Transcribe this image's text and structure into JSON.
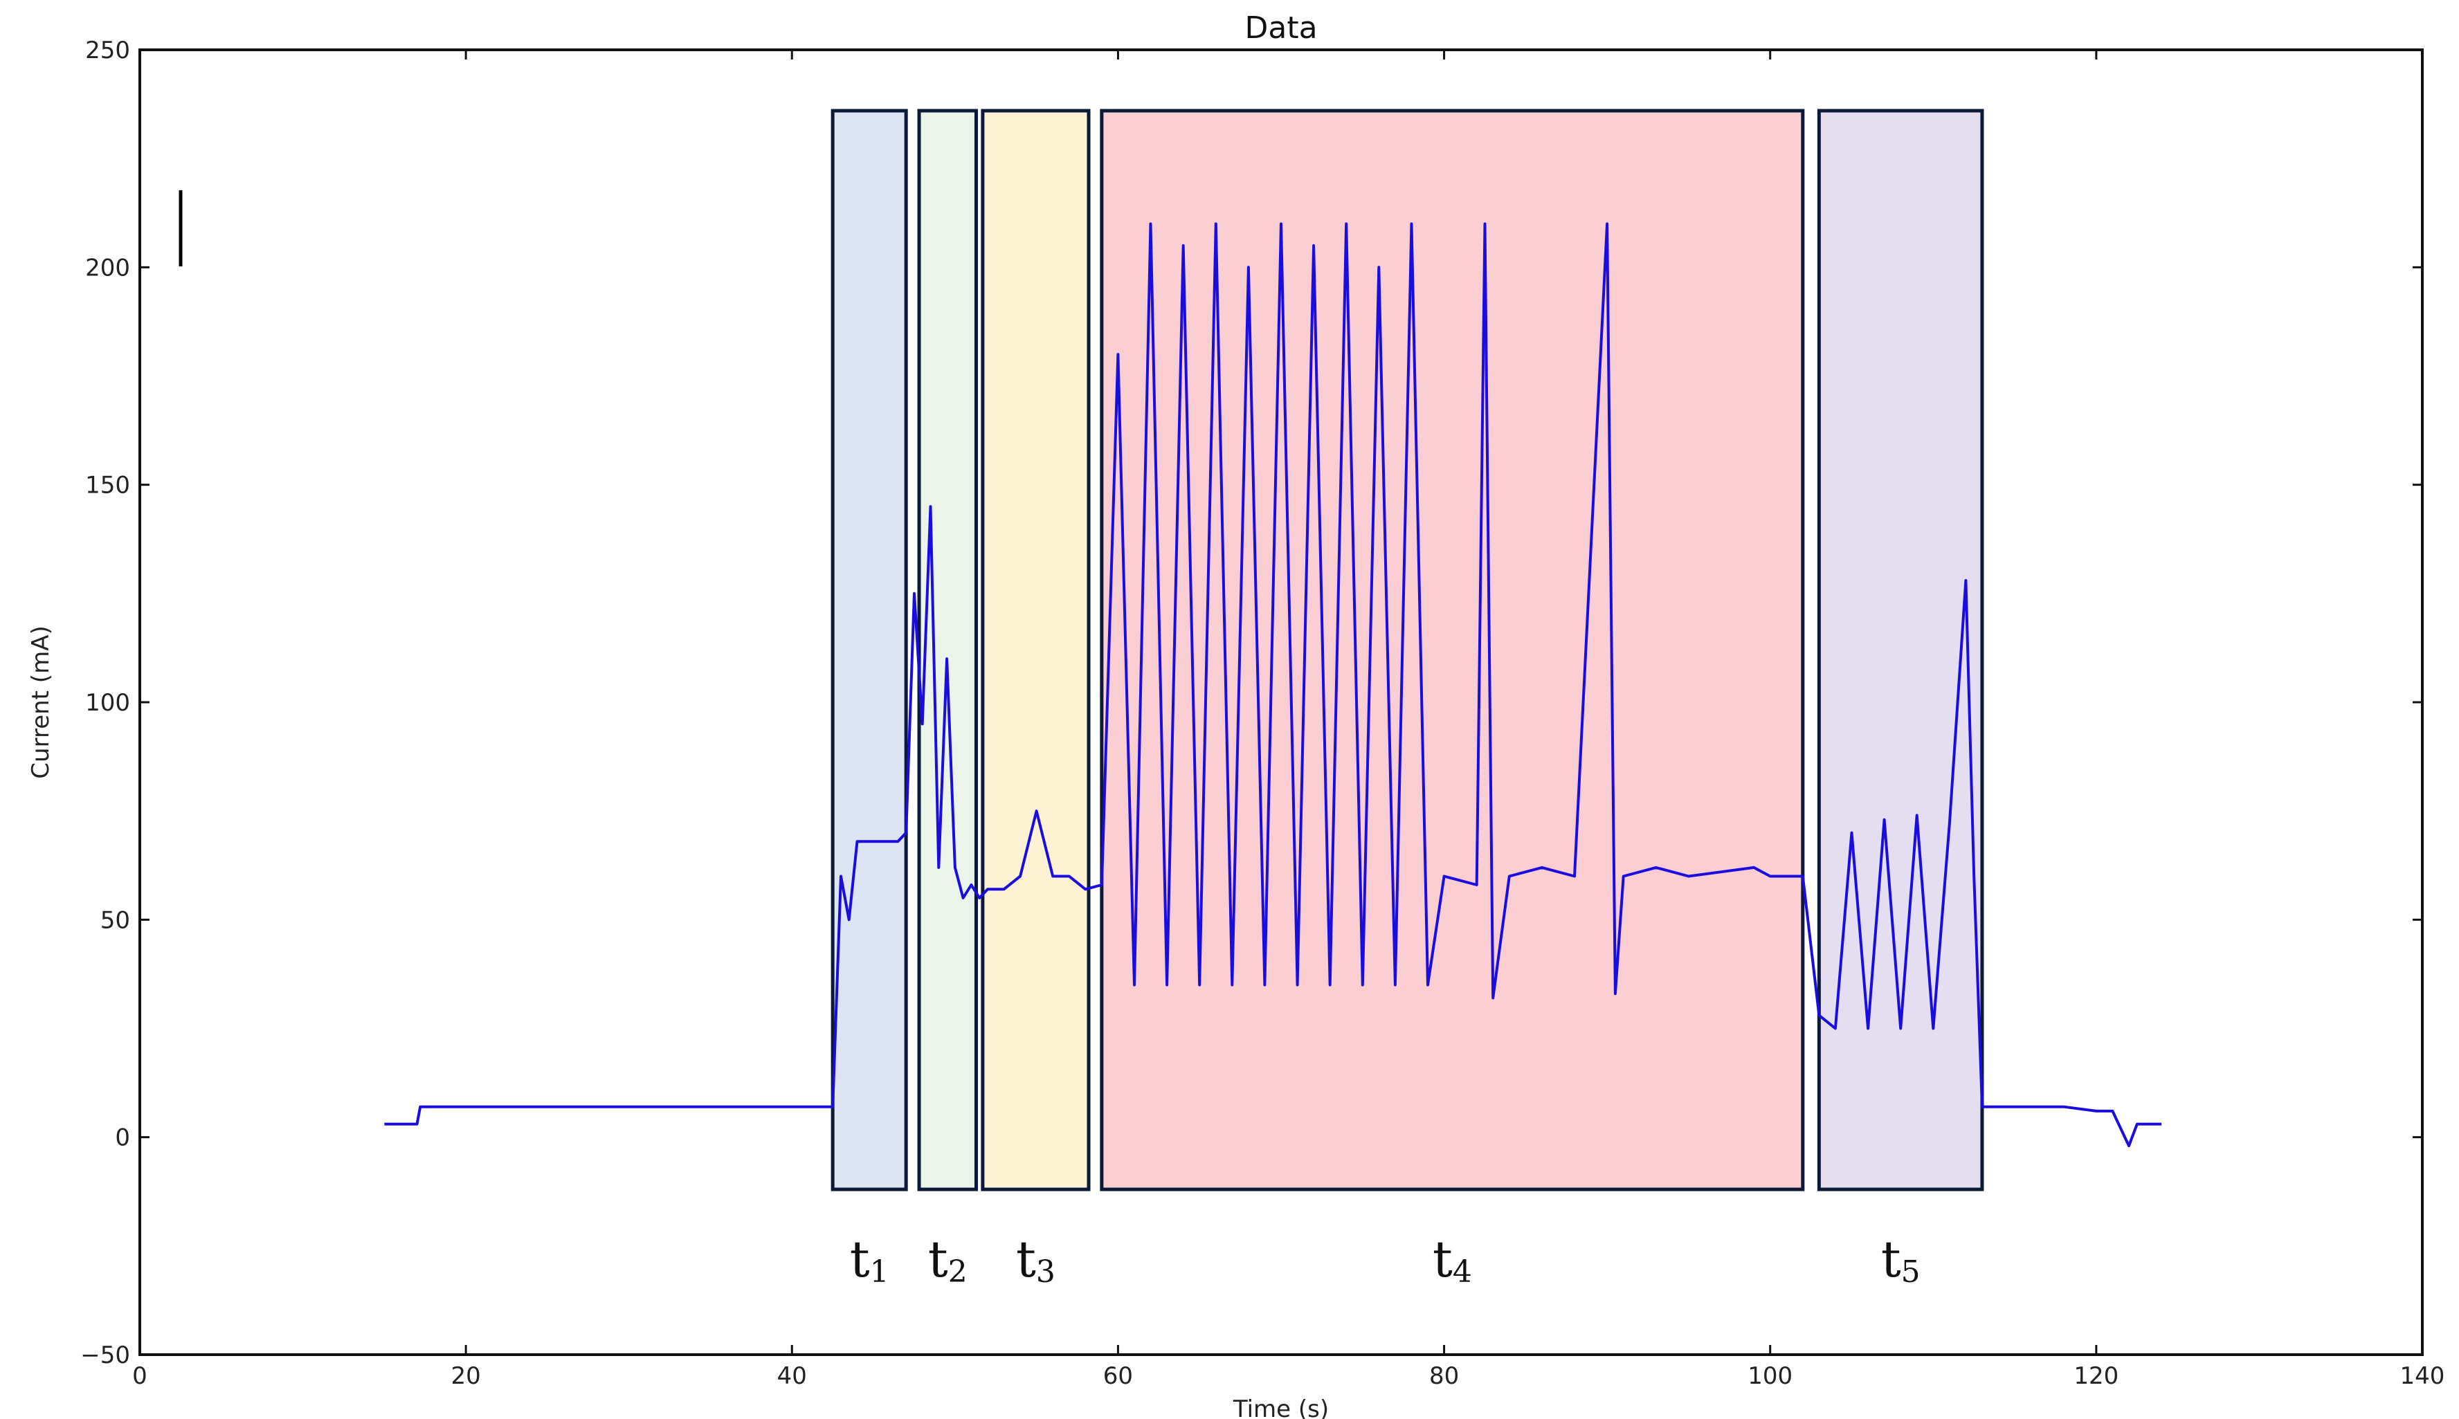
{
  "chart_data": {
    "type": "line",
    "title": "Data",
    "xlabel": "Time (s)",
    "ylabel": "Current (mA)",
    "xlim": [
      0,
      140
    ],
    "ylim": [
      -50,
      250
    ],
    "xticks": [
      0,
      20,
      40,
      60,
      80,
      100,
      120,
      140
    ],
    "yticks": [
      -50,
      0,
      50,
      100,
      150,
      200,
      250
    ],
    "line_color": "#1a0de0",
    "series": [
      {
        "x": [
          15,
          17,
          17.2,
          42.5,
          43,
          43.5,
          44,
          44.5,
          45,
          46,
          46.5,
          47,
          47.5,
          48,
          48.5,
          49,
          49.5,
          50,
          50.5,
          51,
          51.5,
          52,
          53,
          54,
          55,
          56,
          57,
          58,
          59,
          60,
          61,
          62,
          63,
          64,
          65,
          66,
          67,
          68,
          69,
          70,
          71,
          72,
          73,
          74,
          75,
          76,
          77,
          78,
          79,
          80,
          82,
          82.5,
          83,
          84,
          86,
          88,
          90,
          90.5,
          91,
          93,
          95,
          97,
          99,
          100,
          102,
          103,
          104,
          105,
          106,
          107,
          108,
          109,
          110,
          111,
          112,
          112.5,
          113,
          114,
          116,
          118,
          120,
          121,
          122,
          122.5,
          124
        ],
        "y": [
          3,
          3,
          7,
          7,
          60,
          50,
          68,
          68,
          68,
          68,
          68,
          70,
          125,
          95,
          145,
          62,
          110,
          62,
          55,
          58,
          55,
          57,
          57,
          60,
          75,
          60,
          60,
          57,
          58,
          180,
          35,
          210,
          35,
          205,
          35,
          210,
          35,
          200,
          35,
          210,
          35,
          205,
          35,
          210,
          35,
          200,
          35,
          210,
          35,
          60,
          58,
          210,
          32,
          60,
          62,
          60,
          210,
          33,
          60,
          62,
          60,
          61,
          62,
          60,
          60,
          28,
          25,
          70,
          25,
          73,
          25,
          74,
          25,
          72,
          128,
          60,
          7,
          7,
          7,
          7,
          6,
          6,
          -2,
          3,
          3
        ]
      }
    ],
    "phases": [
      {
        "label": "t",
        "sub": "1",
        "x0": 42.5,
        "x1": 47,
        "color": "#c6d4ec"
      },
      {
        "label": "t",
        "sub": "2",
        "x0": 47.8,
        "x1": 51.3,
        "color": "#deecda"
      },
      {
        "label": "t",
        "sub": "3",
        "x0": 51.7,
        "x1": 58.2,
        "color": "#fde9b8"
      },
      {
        "label": "t",
        "sub": "4",
        "x0": 59,
        "x1": 102,
        "color": "#f8adb3"
      },
      {
        "label": "t",
        "sub": "5",
        "x0": 103,
        "x1": 113,
        "color": "#d4c6e6"
      }
    ]
  }
}
